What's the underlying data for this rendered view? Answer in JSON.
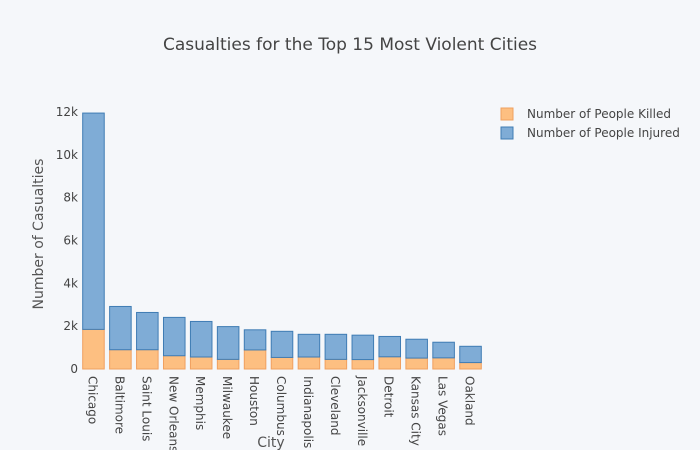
{
  "chart_data": {
    "type": "bar",
    "stacked": true,
    "title": "Casualties for the Top 15 Most Violent Cities",
    "xlabel": "City",
    "ylabel": "Number of Casualties",
    "ylim": [
      0,
      12000
    ],
    "yticks": [
      0,
      2000,
      4000,
      6000,
      8000,
      10000,
      12000
    ],
    "ytick_labels": [
      "0",
      "2k",
      "4k",
      "6k",
      "8k",
      "10k",
      "12k"
    ],
    "grid": false,
    "legend_position": "top-right",
    "categories": [
      "Chicago",
      "Baltimore",
      "Saint Louis",
      "New Orleans",
      "Memphis",
      "Milwaukee",
      "Houston",
      "Columbus",
      "Indianapolis",
      "Cleveland",
      "Jacksonville",
      "Detroit",
      "Kansas City",
      "Las Vegas",
      "Oakland"
    ],
    "series": [
      {
        "name": "Number of People Killed",
        "color": "#fdbf81",
        "stroke": "#f0a060",
        "values": [
          1850,
          900,
          900,
          620,
          560,
          450,
          890,
          540,
          560,
          450,
          440,
          570,
          510,
          520,
          300
        ]
      },
      {
        "name": "Number of People Injured",
        "color": "#7facd6",
        "stroke": "#3f7cb4",
        "values": [
          10100,
          2020,
          1740,
          1790,
          1660,
          1530,
          940,
          1220,
          1060,
          1170,
          1140,
          950,
          880,
          730,
          760
        ]
      }
    ]
  }
}
